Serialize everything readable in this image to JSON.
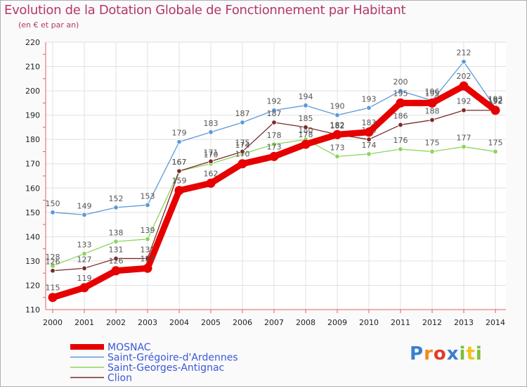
{
  "chart_data": {
    "type": "line",
    "title": "Evolution de la Dotation Globale de Fonctionnement par Habitant",
    "subtitle": "(en € et par an)",
    "xlabel": "",
    "ylabel": "",
    "ylim": [
      110,
      220
    ],
    "yticks": [
      "110",
      "120",
      "130",
      "140",
      "150",
      "160",
      "170",
      "180",
      "190",
      "200",
      "210",
      "220"
    ],
    "categories": [
      "2000",
      "2001",
      "2002",
      "2003",
      "2004",
      "2005",
      "2006",
      "2007",
      "2008",
      "2009",
      "2010",
      "2011",
      "2012",
      "2013",
      "2014"
    ],
    "grid": true,
    "legend_position": "bottom-left",
    "series": [
      {
        "name": "Saint-Grégoire-d'Ardennes",
        "color": "#5a9ad8",
        "values": [
          150,
          149,
          152,
          153,
          179,
          183,
          187,
          192,
          194,
          190,
          193,
          200,
          196,
          212,
          193
        ],
        "labels": [
          "150",
          "149",
          "152",
          "153",
          "179",
          "183",
          "187",
          "192",
          "194",
          "190",
          "193",
          "200",
          "196",
          "212",
          "193"
        ]
      },
      {
        "name": "Saint-Georges-Antignac",
        "color": "#8ed45a",
        "values": [
          128,
          133,
          138,
          139,
          167,
          170,
          174,
          178,
          180,
          173,
          174,
          176,
          175,
          177,
          175
        ],
        "labels": [
          "128",
          "133",
          "138",
          "139",
          "167",
          "170",
          "174",
          "178",
          "180",
          "173",
          "174",
          "176",
          "175",
          "177",
          "175"
        ]
      },
      {
        "name": "Clion",
        "color": "#7a2a2a",
        "values": [
          126,
          127,
          131,
          131,
          167,
          171,
          175,
          187,
          185,
          182,
          180,
          186,
          188,
          192,
          192
        ],
        "labels": [
          "126",
          "127",
          "131",
          "131",
          "167",
          "171",
          "175",
          "187",
          "185",
          "182",
          "180",
          "186",
          "188",
          "192",
          "192"
        ]
      },
      {
        "name": "MOSNAC",
        "color": "#e60000",
        "values": [
          115,
          119,
          126,
          127,
          159,
          162,
          170,
          173,
          178,
          182,
          183,
          195,
          195,
          202,
          192
        ],
        "labels": [
          "115",
          "119",
          "126",
          "127",
          "159",
          "162",
          "170",
          "173",
          "178",
          "182",
          "183",
          "195",
          "195",
          "202",
          "192"
        ]
      }
    ],
    "legend": [
      "MOSNAC",
      "Saint-Grégoire-d'Ardennes",
      "Saint-Georges-Antignac",
      "Clion"
    ],
    "logo_text": "Proxiti"
  }
}
